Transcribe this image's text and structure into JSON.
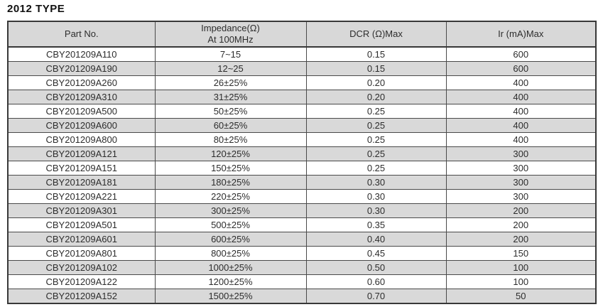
{
  "title": "2012 TYPE",
  "table": {
    "headers": {
      "part_no": "Part No.",
      "impedance_line1": "Impedance(Ω)",
      "impedance_line2": "At 100MHz",
      "dcr": "DCR (Ω)Max",
      "ir": "Ir (mA)Max"
    },
    "column_keys": [
      "part_no",
      "impedance",
      "dcr",
      "ir"
    ],
    "rows": [
      {
        "part_no": "CBY201209A110",
        "impedance": "7~15",
        "dcr": "0.15",
        "ir": "600"
      },
      {
        "part_no": "CBY201209A190",
        "impedance": "12~25",
        "dcr": "0.15",
        "ir": "600"
      },
      {
        "part_no": "CBY201209A260",
        "impedance": "26±25%",
        "dcr": "0.20",
        "ir": "400"
      },
      {
        "part_no": "CBY201209A310",
        "impedance": "31±25%",
        "dcr": "0.20",
        "ir": "400"
      },
      {
        "part_no": "CBY201209A500",
        "impedance": "50±25%",
        "dcr": "0.25",
        "ir": "400"
      },
      {
        "part_no": "CBY201209A600",
        "impedance": "60±25%",
        "dcr": "0.25",
        "ir": "400"
      },
      {
        "part_no": "CBY201209A800",
        "impedance": "80±25%",
        "dcr": "0.25",
        "ir": "400"
      },
      {
        "part_no": "CBY201209A121",
        "impedance": "120±25%",
        "dcr": "0.25",
        "ir": "300"
      },
      {
        "part_no": "CBY201209A151",
        "impedance": "150±25%",
        "dcr": "0.25",
        "ir": "300"
      },
      {
        "part_no": "CBY201209A181",
        "impedance": "180±25%",
        "dcr": "0.30",
        "ir": "300"
      },
      {
        "part_no": "CBY201209A221",
        "impedance": "220±25%",
        "dcr": "0.30",
        "ir": "300"
      },
      {
        "part_no": "CBY201209A301",
        "impedance": "300±25%",
        "dcr": "0.30",
        "ir": "200"
      },
      {
        "part_no": "CBY201209A501",
        "impedance": "500±25%",
        "dcr": "0.35",
        "ir": "200"
      },
      {
        "part_no": "CBY201209A601",
        "impedance": "600±25%",
        "dcr": "0.40",
        "ir": "200"
      },
      {
        "part_no": "CBY201209A801",
        "impedance": "800±25%",
        "dcr": "0.45",
        "ir": "150"
      },
      {
        "part_no": "CBY201209A102",
        "impedance": "1000±25%",
        "dcr": "0.50",
        "ir": "100"
      },
      {
        "part_no": "CBY201209A122",
        "impedance": "1200±25%",
        "dcr": "0.60",
        "ir": "100"
      },
      {
        "part_no": "CBY201209A152",
        "impedance": "1500±25%",
        "dcr": "0.70",
        "ir": "50"
      }
    ]
  },
  "colors": {
    "header_bg": "#d8d8d8",
    "row_bg": "#ffffff",
    "row_alt_bg": "#d9d9d9",
    "grid_border": "#4a4a4a",
    "outer_border": "#383838",
    "text": "#2d2d2d",
    "title_text": "#111111"
  }
}
